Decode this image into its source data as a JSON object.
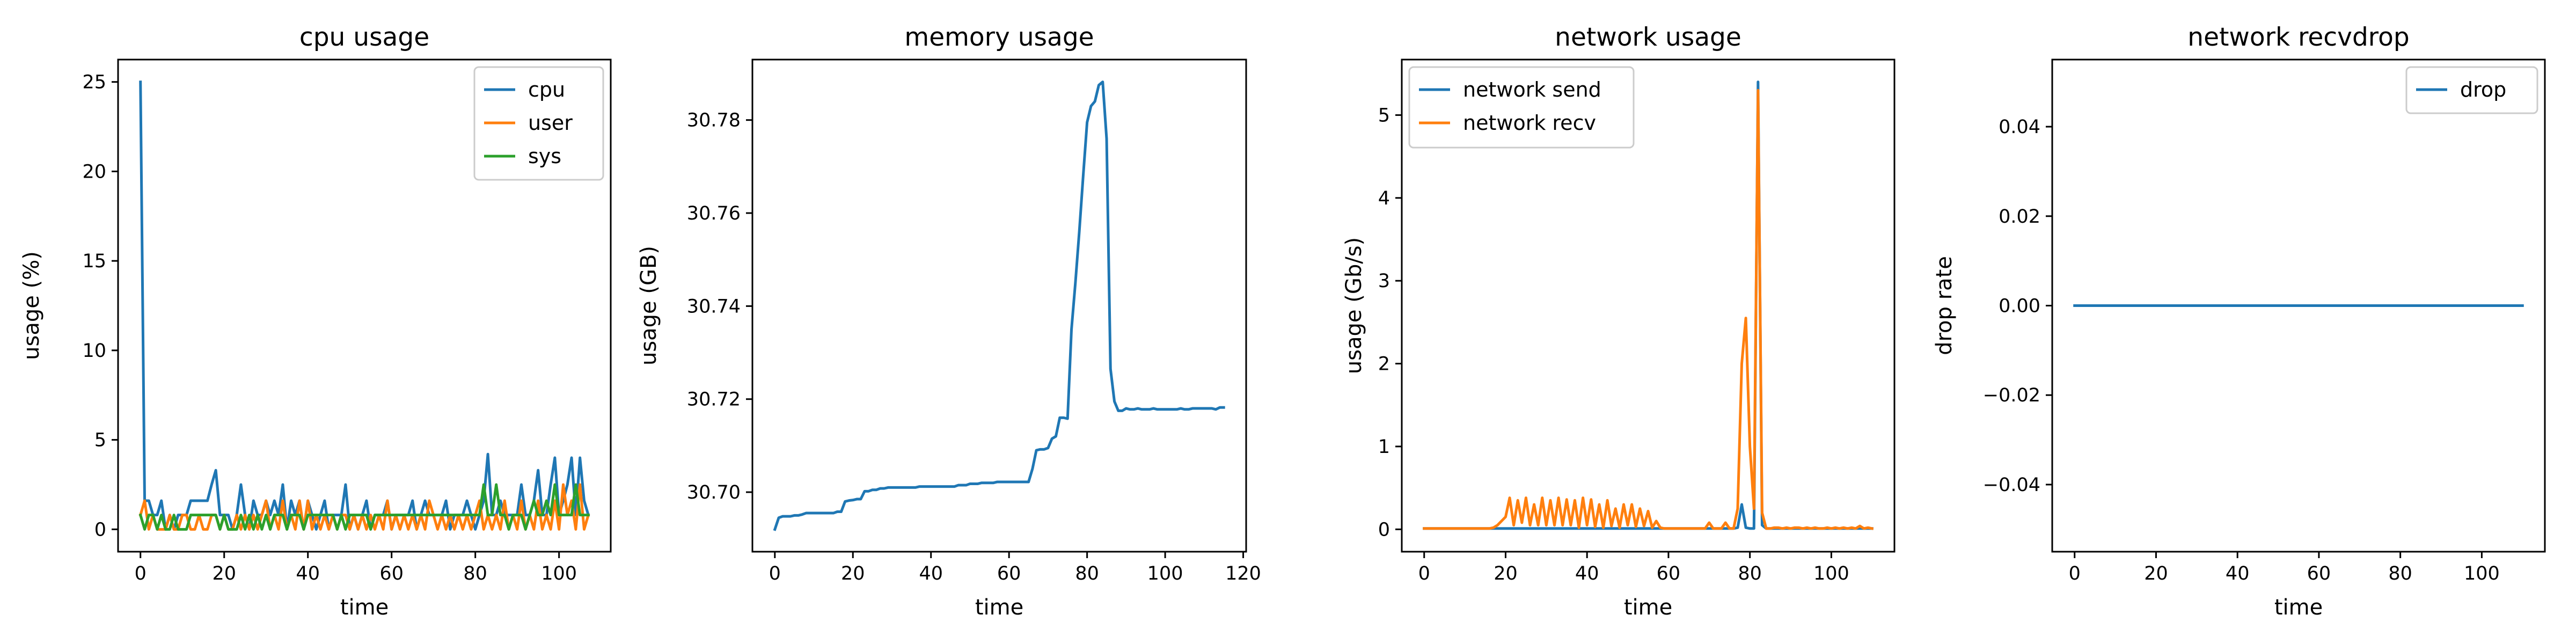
{
  "chart_data": [
    {
      "type": "line",
      "title": "cpu usage",
      "xlabel": "time",
      "ylabel": "usage (%)",
      "xlim": [
        -5.35,
        112.35
      ],
      "ylim": [
        -1.25,
        26.25
      ],
      "xticks": [
        0,
        20,
        40,
        60,
        80,
        100
      ],
      "yticks": [
        0,
        5,
        10,
        15,
        20,
        25
      ],
      "legend": "top-right",
      "x_start": 0,
      "series": [
        {
          "name": "cpu",
          "color": "#1f77b4",
          "values": [
            25,
            1.6,
            1.6,
            0.8,
            0.8,
            1.6,
            0,
            0.8,
            0,
            0.8,
            0.8,
            0.8,
            1.6,
            1.6,
            1.6,
            1.6,
            1.6,
            2.5,
            3.3,
            0.8,
            0.8,
            0.8,
            0,
            0.8,
            2.5,
            0.8,
            0,
            1.6,
            0.8,
            0.8,
            1.6,
            0.8,
            1.6,
            0.8,
            2.5,
            0,
            1.6,
            0.8,
            1.6,
            0,
            1.6,
            0.8,
            0,
            0.8,
            1.6,
            0,
            0.8,
            0.8,
            0.8,
            2.5,
            0,
            0.8,
            0,
            0.8,
            1.6,
            0,
            0.8,
            0.8,
            0.8,
            1.6,
            0,
            0.8,
            0.8,
            0.8,
            0.8,
            1.6,
            0,
            0.8,
            1.6,
            0.8,
            0.8,
            0.8,
            0.8,
            1.6,
            0,
            0.8,
            0.8,
            0.8,
            1.6,
            0.8,
            0,
            0.8,
            1.6,
            4.2,
            0.8,
            0.8,
            1.6,
            0.8,
            0.8,
            0.8,
            0.8,
            2.5,
            0.8,
            0.8,
            1.6,
            3.3,
            0.8,
            0.8,
            2.5,
            4,
            0.8,
            1.6,
            2.5,
            4,
            0.8,
            4,
            1.6,
            0.8
          ]
        },
        {
          "name": "user",
          "color": "#ff7f0e",
          "values": [
            0.8,
            1.6,
            0,
            0.8,
            0,
            0,
            0,
            0.8,
            0,
            0,
            0.8,
            0.8,
            0,
            0,
            0.8,
            0,
            0,
            0.8,
            0.8,
            0,
            0.8,
            0,
            0,
            0.8,
            0,
            0.8,
            0,
            0.8,
            0,
            0.8,
            1.6,
            0,
            0.8,
            0,
            1.6,
            0,
            0.8,
            0,
            1.6,
            0,
            1.6,
            0,
            0.8,
            0,
            0.8,
            0,
            0.8,
            0,
            0.8,
            0.8,
            0,
            0.8,
            0,
            0.8,
            0,
            0.8,
            0,
            0.8,
            0,
            1.6,
            0,
            0.8,
            0,
            0.8,
            0,
            0.8,
            0,
            0.8,
            0,
            1.6,
            0.8,
            0,
            0.8,
            0,
            0.8,
            0,
            0.8,
            0,
            0.8,
            0,
            0.8,
            1.6,
            0,
            0.8,
            0,
            0.8,
            0,
            1.6,
            0,
            0.8,
            0,
            1.6,
            0,
            0.8,
            0,
            1.6,
            0,
            0.8,
            0,
            1.6,
            0,
            2.5,
            0.8,
            1.6,
            0,
            2.5,
            0,
            0.8
          ]
        },
        {
          "name": "sys",
          "color": "#2ca02c",
          "values": [
            0.8,
            0,
            0.8,
            0.8,
            0,
            0.8,
            0,
            0,
            0.8,
            0,
            0,
            0,
            0.8,
            0.8,
            0.8,
            0.8,
            0.8,
            0.8,
            0.8,
            0,
            0.8,
            0,
            0,
            0,
            0.8,
            0,
            0.8,
            0,
            0.8,
            0,
            0.8,
            0,
            0.8,
            0.8,
            0.8,
            0,
            0.8,
            0.8,
            0.8,
            0,
            0.8,
            0.8,
            0.8,
            0.8,
            0.8,
            0.8,
            0.8,
            0,
            0.8,
            0,
            0.8,
            0.8,
            0.8,
            0.8,
            0.8,
            0,
            0.8,
            0.8,
            0.8,
            0.8,
            0.8,
            0.8,
            0.8,
            0.8,
            0.8,
            0.8,
            0.8,
            0.8,
            0.8,
            0.8,
            0.8,
            0.8,
            0.8,
            0.8,
            0.8,
            0.8,
            0.8,
            0.8,
            0.8,
            0.8,
            0.8,
            0.8,
            2.5,
            0.8,
            0.8,
            2.5,
            0.8,
            0.8,
            0,
            0.8,
            0.8,
            0.8,
            0,
            0.8,
            1.6,
            0.8,
            0.8,
            1.6,
            0.8,
            2.5,
            0.8,
            0.8,
            0.8,
            0.8,
            2.5,
            0.8,
            0.8,
            0.8
          ]
        }
      ]
    },
    {
      "type": "line",
      "title": "memory usage",
      "xlabel": "time",
      "ylabel": "usage (GB)",
      "xlim": [
        -5.75,
        120.75
      ],
      "ylim": [
        30.6872,
        30.793
      ],
      "xticks": [
        0,
        20,
        40,
        60,
        80,
        100,
        120
      ],
      "yticks": [
        30.7,
        30.72,
        30.74,
        30.76,
        30.78
      ],
      "ytick_labels": [
        "30.70",
        "30.72",
        "30.74",
        "30.76",
        "30.78"
      ],
      "x_start": 0,
      "series": [
        {
          "name": "memory",
          "color": "#1f77b4",
          "values": [
            30.692,
            30.6945,
            30.6948,
            30.6948,
            30.6948,
            30.695,
            30.695,
            30.6952,
            30.6955,
            30.6955,
            30.6955,
            30.6955,
            30.6955,
            30.6955,
            30.6955,
            30.6955,
            30.6958,
            30.6958,
            30.698,
            30.6982,
            30.6983,
            30.6985,
            30.6985,
            30.7002,
            30.7002,
            30.7005,
            30.7005,
            30.7008,
            30.7008,
            30.701,
            30.701,
            30.701,
            30.701,
            30.701,
            30.701,
            30.701,
            30.701,
            30.7012,
            30.7012,
            30.7012,
            30.7012,
            30.7012,
            30.7012,
            30.7012,
            30.7012,
            30.7012,
            30.7012,
            30.7015,
            30.7015,
            30.7015,
            30.7018,
            30.7018,
            30.7018,
            30.702,
            30.702,
            30.702,
            30.702,
            30.7022,
            30.7022,
            30.7022,
            30.7022,
            30.7022,
            30.7022,
            30.7022,
            30.7022,
            30.7022,
            30.705,
            30.709,
            30.7092,
            30.7092,
            30.7095,
            30.7115,
            30.712,
            30.716,
            30.716,
            30.7158,
            30.735,
            30.745,
            30.756,
            30.768,
            30.7795,
            30.783,
            30.784,
            30.7875,
            30.7882,
            30.776,
            30.7265,
            30.7195,
            30.7175,
            30.7175,
            30.718,
            30.7178,
            30.7178,
            30.718,
            30.7178,
            30.7178,
            30.7178,
            30.718,
            30.7178,
            30.7178,
            30.7178,
            30.7178,
            30.7178,
            30.7178,
            30.718,
            30.7178,
            30.7178,
            30.718,
            30.718,
            30.718,
            30.718,
            30.718,
            30.718,
            30.7178,
            30.7182,
            30.7182
          ]
        }
      ]
    },
    {
      "type": "line",
      "title": "network usage",
      "xlabel": "time",
      "ylabel": "usage (Gb/s)",
      "xlim": [
        -5.5,
        115.5
      ],
      "ylim": [
        -0.27,
        5.67
      ],
      "xticks": [
        0,
        20,
        40,
        60,
        80,
        100
      ],
      "yticks": [
        0,
        1,
        2,
        3,
        4,
        5
      ],
      "legend": "top-left",
      "x_start": 0,
      "series": [
        {
          "name": "network send",
          "color": "#1f77b4",
          "values": [
            0.01,
            0.01,
            0.01,
            0.01,
            0.01,
            0.01,
            0.01,
            0.01,
            0.01,
            0.01,
            0.01,
            0.01,
            0.01,
            0.01,
            0.01,
            0.01,
            0.01,
            0.01,
            0.01,
            0.01,
            0.01,
            0.01,
            0.01,
            0.01,
            0.01,
            0.01,
            0.01,
            0.01,
            0.01,
            0.01,
            0.01,
            0.01,
            0.01,
            0.01,
            0.01,
            0.01,
            0.01,
            0.01,
            0.01,
            0.01,
            0.01,
            0.01,
            0.01,
            0.01,
            0.01,
            0.01,
            0.01,
            0.01,
            0.01,
            0.01,
            0.01,
            0.01,
            0.01,
            0.01,
            0.01,
            0.01,
            0.01,
            0.01,
            0.01,
            0.01,
            0.01,
            0.01,
            0.01,
            0.01,
            0.01,
            0.01,
            0.01,
            0.01,
            0.01,
            0.01,
            0.01,
            0.01,
            0.01,
            0.01,
            0.01,
            0.01,
            0.01,
            0.02,
            0.3,
            0.02,
            0.01,
            0.01,
            5.4,
            0.05,
            0.01,
            0.01,
            0.01,
            0.01,
            0.01,
            0.01,
            0.01,
            0.01,
            0.01,
            0.01,
            0.01,
            0.01,
            0.01,
            0.01,
            0.01,
            0.01,
            0.01,
            0.01,
            0.01,
            0.01,
            0.01,
            0.01,
            0.01,
            0.01,
            0.01,
            0.01,
            0.01
          ]
        },
        {
          "name": "network recv",
          "color": "#ff7f0e",
          "values": [
            0.01,
            0.01,
            0.01,
            0.01,
            0.01,
            0.01,
            0.01,
            0.01,
            0.01,
            0.01,
            0.01,
            0.01,
            0.01,
            0.01,
            0.01,
            0.01,
            0.01,
            0.02,
            0.05,
            0.1,
            0.15,
            0.38,
            0.05,
            0.35,
            0.08,
            0.38,
            0.05,
            0.3,
            0.05,
            0.38,
            0.05,
            0.35,
            0.05,
            0.38,
            0.05,
            0.36,
            0.05,
            0.35,
            0.02,
            0.38,
            0.05,
            0.36,
            0.03,
            0.3,
            0.02,
            0.35,
            0.04,
            0.25,
            0.02,
            0.3,
            0.05,
            0.3,
            0.03,
            0.25,
            0.04,
            0.22,
            0.02,
            0.1,
            0.02,
            0.01,
            0.01,
            0.01,
            0.01,
            0.01,
            0.01,
            0.01,
            0.01,
            0.01,
            0.01,
            0.01,
            0.08,
            0.01,
            0.01,
            0.01,
            0.08,
            0.01,
            0.01,
            0.25,
            2.0,
            2.55,
            1.0,
            0.25,
            5.3,
            0.2,
            0.01,
            0.01,
            0.02,
            0.02,
            0.01,
            0.02,
            0.01,
            0.02,
            0.02,
            0.01,
            0.02,
            0.01,
            0.02,
            0.01,
            0.01,
            0.02,
            0.01,
            0.02,
            0.01,
            0.02,
            0.01,
            0.02,
            0.01,
            0.04,
            0.01,
            0.02,
            0.01
          ]
        }
      ]
    },
    {
      "type": "line",
      "title": "network recvdrop",
      "xlabel": "time",
      "ylabel": "drop rate",
      "xlim": [
        -5.5,
        115.5
      ],
      "ylim": [
        -0.055,
        0.055
      ],
      "xticks": [
        0,
        20,
        40,
        60,
        80,
        100
      ],
      "yticks": [
        -0.04,
        -0.02,
        0.0,
        0.02,
        0.04
      ],
      "ytick_labels": [
        "−0.04",
        "−0.02",
        "0.00",
        "0.02",
        "0.04"
      ],
      "legend": "top-right",
      "x_start": 0,
      "series": [
        {
          "name": "drop",
          "color": "#1f77b4",
          "values": [
            0,
            0,
            0,
            0,
            0,
            0,
            0,
            0,
            0,
            0,
            0,
            0,
            0,
            0,
            0,
            0,
            0,
            0,
            0,
            0,
            0,
            0,
            0,
            0,
            0,
            0,
            0,
            0,
            0,
            0,
            0,
            0,
            0,
            0,
            0,
            0,
            0,
            0,
            0,
            0,
            0,
            0,
            0,
            0,
            0,
            0,
            0,
            0,
            0,
            0,
            0,
            0,
            0,
            0,
            0,
            0,
            0,
            0,
            0,
            0,
            0,
            0,
            0,
            0,
            0,
            0,
            0,
            0,
            0,
            0,
            0,
            0,
            0,
            0,
            0,
            0,
            0,
            0,
            0,
            0,
            0,
            0,
            0,
            0,
            0,
            0,
            0,
            0,
            0,
            0,
            0,
            0,
            0,
            0,
            0,
            0,
            0,
            0,
            0,
            0,
            0,
            0,
            0,
            0,
            0,
            0,
            0,
            0,
            0,
            0,
            0
          ]
        }
      ]
    }
  ]
}
